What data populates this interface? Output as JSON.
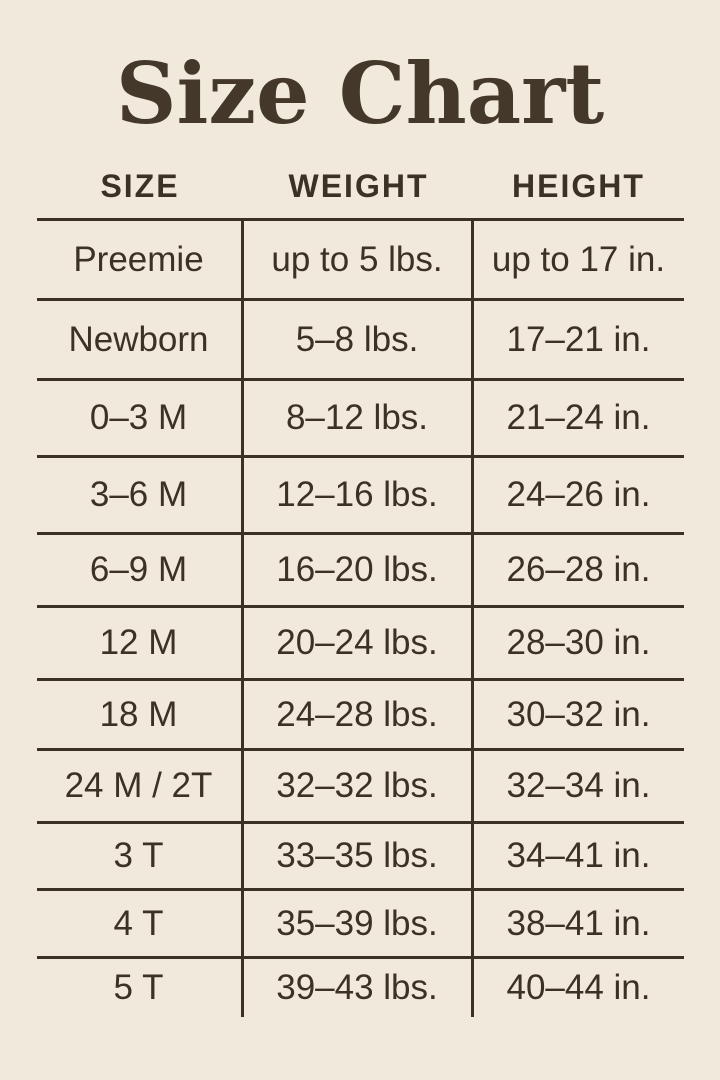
{
  "title": "Size Chart",
  "colors": {
    "background": "#F2E9DD",
    "ink": "#3B3127",
    "title_ink": "#44382A"
  },
  "chart_data": {
    "type": "table",
    "title": "Size Chart",
    "columns": [
      "SIZE",
      "WEIGHT",
      "HEIGHT"
    ],
    "rows": [
      [
        "Preemie",
        "up to 5 lbs.",
        "up to 17 in."
      ],
      [
        "Newborn",
        "5–8 lbs.",
        "17–21 in."
      ],
      [
        "0–3 M",
        "8–12 lbs.",
        "21–24 in."
      ],
      [
        "3–6 M",
        "12–16 lbs.",
        "24–26 in."
      ],
      [
        "6–9 M",
        "16–20 lbs.",
        "26–28 in."
      ],
      [
        "12 M",
        "20–24 lbs.",
        "28–30 in."
      ],
      [
        "18 M",
        "24–28 lbs.",
        "30–32 in."
      ],
      [
        "24 M / 2T",
        "32–32 lbs.",
        "32–34 in."
      ],
      [
        "3 T",
        "33–35 lbs.",
        "34–41 in."
      ],
      [
        "4 T",
        "35–39 lbs.",
        "38–41 in."
      ],
      [
        "5 T",
        "39–43 lbs.",
        "40–44 in."
      ]
    ]
  }
}
